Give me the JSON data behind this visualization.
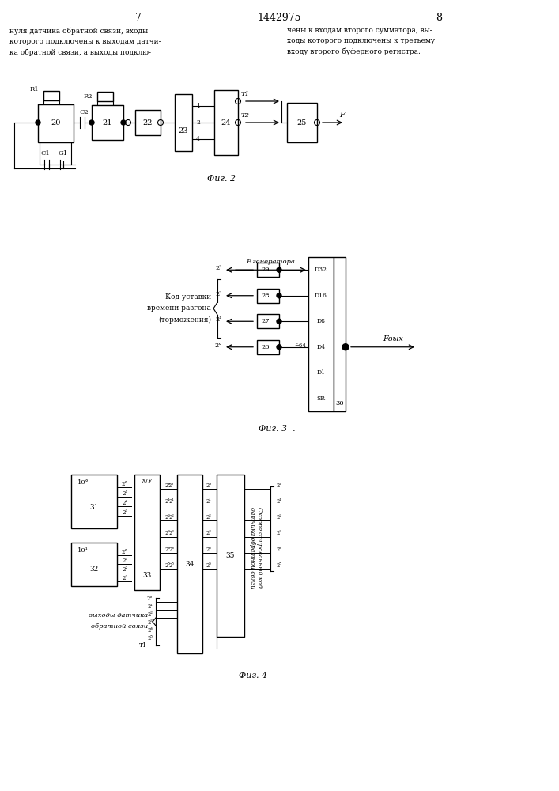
{
  "bg_color": "#ffffff",
  "line_color": "#000000",
  "title": "1442975",
  "page_left": "7",
  "page_right": "8",
  "header_left": "нуля датчика обратной связи, входы\nкоторого подключены к выходам датчи-\nка обратной связи, а выходы подклю-",
  "header_right": "чены к входам второго сумматора, вы-\nходы которого подключены к третьему\nвходу второго буферного регистра.",
  "fig2_label": "Фиг. 2",
  "fig3_label": "Фиг. 3  .",
  "fig4_label": "Фиг. 4"
}
